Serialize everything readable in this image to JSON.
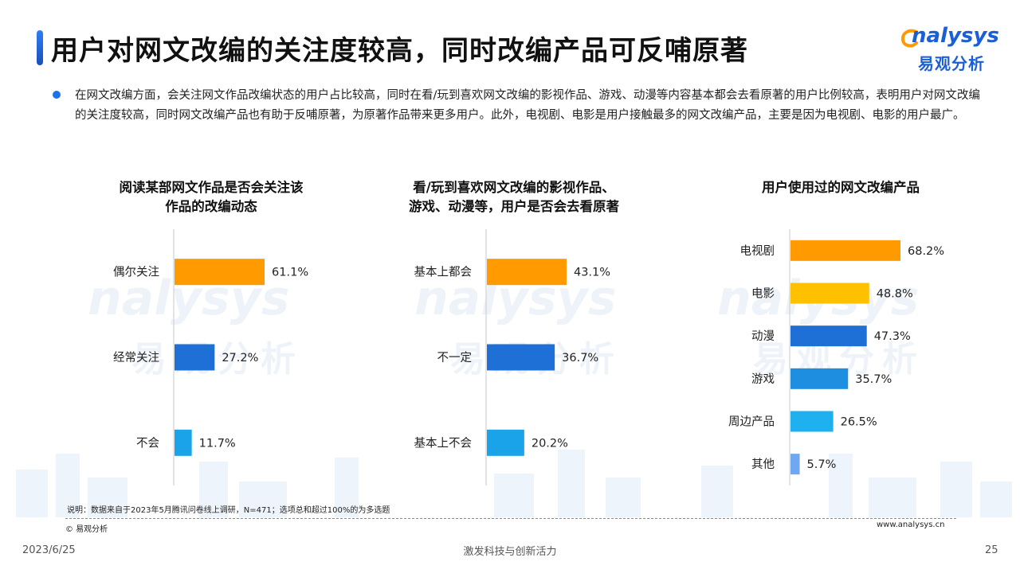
{
  "header": {
    "title": "用户对网文改编的关注度较高，同时改编产品可反哺原著",
    "logo_en": "nalysys",
    "logo_cn": "易观分析"
  },
  "intro_text": "在网文改编方面，会关注网文作品改编状态的用户占比较高，同时在看/玩到喜欢网文改编的影视作品、游戏、动漫等内容基本都会去看原著的用户比例较高，表明用户对网文改编的关注度较高，同时网文改编产品也有助于反哺原著，为原著作品带来更多用户。此外，电视剧、电影是用户接触最多的网文改编产品，主要是因为电视剧、电影的用户最广。",
  "chart_data": [
    {
      "type": "bar",
      "orientation": "horizontal",
      "title_lines": [
        "阅读某部网文作品是否会关注该",
        "作品的改编动态"
      ],
      "categories": [
        "偶尔关注",
        "经常关注",
        "不会"
      ],
      "values": [
        61.1,
        27.2,
        11.7
      ],
      "value_labels": [
        "61.1%",
        "27.2%",
        "11.7%"
      ],
      "colors": [
        "#ff9a00",
        "#1e6fd6",
        "#1aa3e8"
      ],
      "xlim": [
        0,
        100
      ]
    },
    {
      "type": "bar",
      "orientation": "horizontal",
      "title_lines": [
        "看/玩到喜欢网文改编的影视作品、",
        "游戏、动漫等，用户是否会去看原著"
      ],
      "categories": [
        "基本上都会",
        "不一定",
        "基本上不会"
      ],
      "values": [
        43.1,
        36.7,
        20.2
      ],
      "value_labels": [
        "43.1%",
        "36.7%",
        "20.2%"
      ],
      "colors": [
        "#ff9a00",
        "#1e6fd6",
        "#1aa3e8"
      ],
      "xlim": [
        0,
        100
      ]
    },
    {
      "type": "bar",
      "orientation": "horizontal",
      "title_lines": [
        "用户使用过的网文改编产品"
      ],
      "categories": [
        "电视剧",
        "电影",
        "动漫",
        "游戏",
        "周边产品",
        "其他"
      ],
      "values": [
        68.2,
        48.8,
        47.3,
        35.7,
        26.5,
        5.7
      ],
      "value_labels": [
        "68.2%",
        "48.8%",
        "47.3%",
        "35.7%",
        "26.5%",
        "5.7%"
      ],
      "colors": [
        "#ff9a00",
        "#ffc000",
        "#1e6fd6",
        "#1e8fe0",
        "#1fb0f0",
        "#6fa8f0"
      ],
      "xlim": [
        0,
        100
      ]
    }
  ],
  "footer": {
    "note": "说明：数据来自于2023年5月腾讯问卷线上调研，N=471；选项总和超过100%的为多选题",
    "copyright": "© 易观分析",
    "website": "www.analysys.cn",
    "date": "2023/6/25",
    "slogan": "激发科技与创新活力",
    "page_number": "25"
  },
  "colors": {
    "accent_blue": "#1b5fd6",
    "orange": "#ff9a00"
  }
}
